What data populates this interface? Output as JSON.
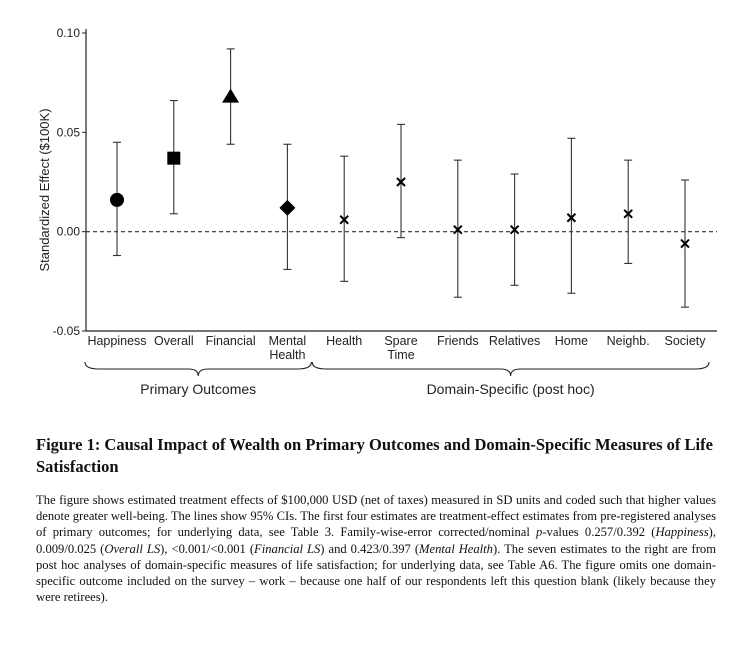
{
  "chart_data": {
    "type": "scatter",
    "subtype": "point-estimate-with-95ci",
    "ylabel": "Standardized Effect ($100K)",
    "ylim": [
      -0.05,
      0.1
    ],
    "yticks": [
      -0.05,
      0.0,
      0.05,
      0.1
    ],
    "ytick_labels": [
      "-0.05",
      "0.00",
      "0.05",
      "0.10"
    ],
    "reference_line": 0.0,
    "categories": [
      "Happiness",
      "Overall",
      "Financial",
      "Mental\nHealth",
      "Health",
      "Spare\nTime",
      "Friends",
      "Relatives",
      "Home",
      "Neighb.",
      "Society"
    ],
    "series": [
      {
        "name": "Primary Outcomes",
        "points": [
          {
            "category": "Happiness",
            "estimate": 0.016,
            "ci_low": -0.012,
            "ci_high": 0.045,
            "marker": "circle"
          },
          {
            "category": "Overall",
            "estimate": 0.037,
            "ci_low": 0.009,
            "ci_high": 0.066,
            "marker": "square"
          },
          {
            "category": "Financial",
            "estimate": 0.068,
            "ci_low": 0.044,
            "ci_high": 0.092,
            "marker": "triangle"
          },
          {
            "category": "Mental\nHealth",
            "estimate": 0.012,
            "ci_low": -0.019,
            "ci_high": 0.044,
            "marker": "diamond"
          }
        ]
      },
      {
        "name": "Domain-Specific (post hoc)",
        "points": [
          {
            "category": "Health",
            "estimate": 0.006,
            "ci_low": -0.025,
            "ci_high": 0.038,
            "marker": "x"
          },
          {
            "category": "Spare\nTime",
            "estimate": 0.025,
            "ci_low": -0.003,
            "ci_high": 0.054,
            "marker": "x"
          },
          {
            "category": "Friends",
            "estimate": 0.001,
            "ci_low": -0.033,
            "ci_high": 0.036,
            "marker": "x"
          },
          {
            "category": "Relatives",
            "estimate": 0.001,
            "ci_low": -0.027,
            "ci_high": 0.029,
            "marker": "x"
          },
          {
            "category": "Home",
            "estimate": 0.007,
            "ci_low": -0.031,
            "ci_high": 0.047,
            "marker": "x"
          },
          {
            "category": "Neighb.",
            "estimate": 0.009,
            "ci_low": -0.016,
            "ci_high": 0.036,
            "marker": "x"
          },
          {
            "category": "Society",
            "estimate": -0.006,
            "ci_low": -0.038,
            "ci_high": 0.026,
            "marker": "x"
          }
        ]
      }
    ],
    "groups": [
      {
        "label": "Primary Outcomes",
        "first_index": 0,
        "last_index": 3
      },
      {
        "label": "Domain-Specific (post hoc)",
        "first_index": 4,
        "last_index": 10
      }
    ]
  },
  "caption": {
    "title": "Figure 1: Causal Impact of Wealth on Primary Outcomes and Domain-Specific Measures of Life Satisfaction",
    "body_parts": [
      {
        "text": "The figure shows estimated treatment effects of $100,000 USD (net of taxes) measured in SD units and coded such that higher values denote greater well-being. The lines show 95% CIs. The first four estimates are treatment-effect estimates from pre-registered analyses of primary outcomes; for underlying data, see Table 3. Family-wise-error corrected/nominal ",
        "italic": false
      },
      {
        "text": "p",
        "italic": true
      },
      {
        "text": "-values 0.257/0.392 (",
        "italic": false
      },
      {
        "text": "Happiness",
        "italic": true
      },
      {
        "text": "), 0.009/0.025 (",
        "italic": false
      },
      {
        "text": "Overall LS",
        "italic": true
      },
      {
        "text": "), <0.001/<0.001 (",
        "italic": false
      },
      {
        "text": "Financial LS",
        "italic": true
      },
      {
        "text": ") and 0.423/0.397 (",
        "italic": false
      },
      {
        "text": "Mental Health",
        "italic": true
      },
      {
        "text": "). The seven estimates to the right are from post hoc analyses of domain-specific measures of life satisfaction; for underlying data, see Table A6. The figure omits one domain-specific outcome included on the survey – work – because one half of our respondents left this question blank (likely because they were retirees).",
        "italic": false
      }
    ]
  }
}
